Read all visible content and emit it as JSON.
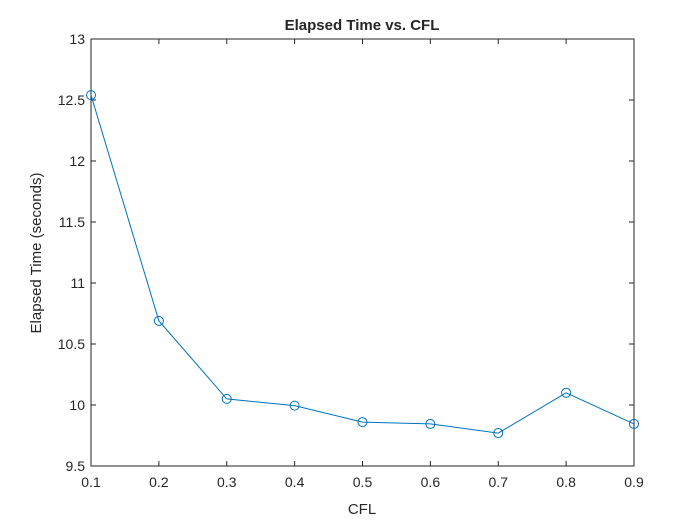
{
  "chart_data": {
    "type": "line",
    "title": "Elapsed Time vs. CFL",
    "xlabel": "CFL",
    "ylabel": "Elapsed Time (seconds)",
    "x": [
      0.1,
      0.2,
      0.3,
      0.4,
      0.5,
      0.6,
      0.7,
      0.8,
      0.9
    ],
    "series": [
      {
        "values": [
          12.54,
          10.69,
          10.05,
          9.995,
          9.86,
          9.845,
          9.77,
          10.1,
          9.845
        ],
        "marker": "circle",
        "color": "#0072BD"
      }
    ],
    "xlim": [
      0.1,
      0.9
    ],
    "ylim": [
      9.5,
      13
    ],
    "xticks": [
      0.1,
      0.2,
      0.3,
      0.4,
      0.5,
      0.6,
      0.7,
      0.8,
      0.9
    ],
    "xtick_labels": [
      "0.1",
      "0.2",
      "0.3",
      "0.4",
      "0.5",
      "0.6",
      "0.7",
      "0.8",
      "0.9"
    ],
    "yticks": [
      9.5,
      10,
      10.5,
      11,
      11.5,
      12,
      12.5,
      13
    ],
    "ytick_labels": [
      "9.5",
      "10",
      "10.5",
      "11",
      "11.5",
      "12",
      "12.5",
      "13"
    ],
    "grid": false,
    "box": true
  }
}
